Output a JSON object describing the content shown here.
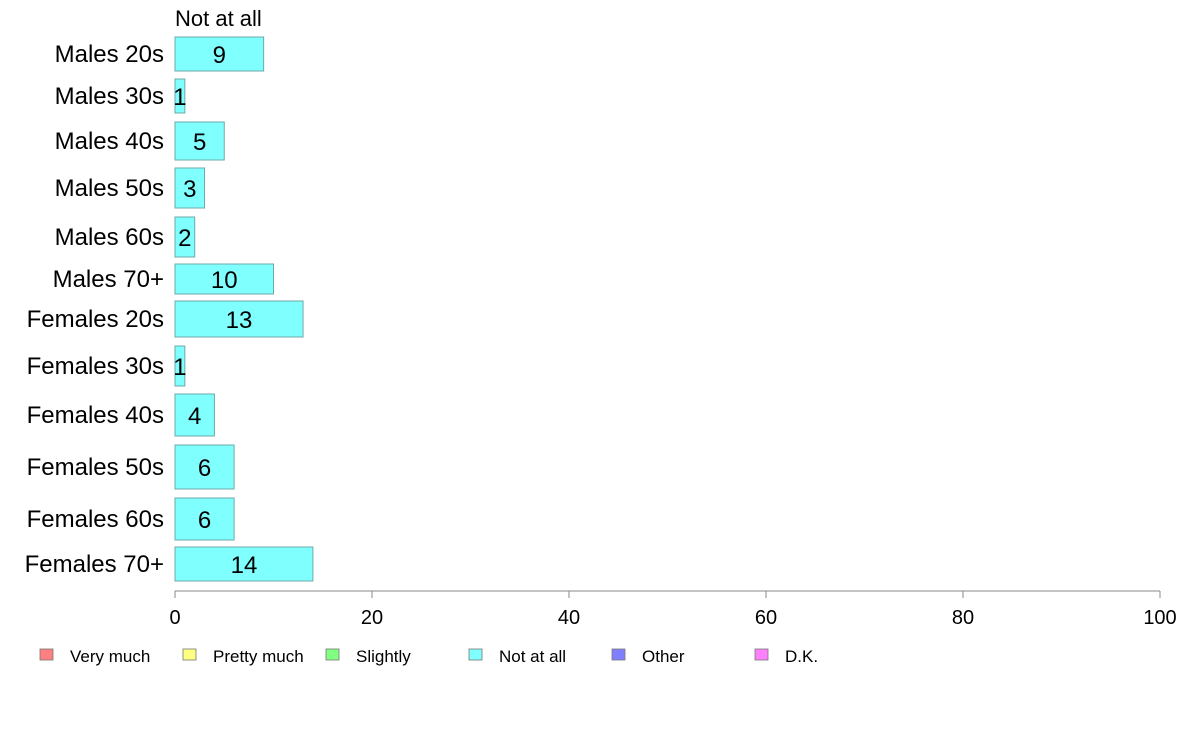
{
  "chart_data": {
    "type": "bar",
    "orientation": "horizontal",
    "stacked": true,
    "categories": [
      "Males 20s",
      "Males 30s",
      "Males 40s",
      "Males 50s",
      "Males 60s",
      "Males 70+",
      "Females 20s",
      "Females 30s",
      "Females 40s",
      "Females 50s",
      "Females 60s",
      "Females 70+"
    ],
    "series": [
      {
        "name": "Not at all",
        "color": "#80ffff",
        "values": [
          9,
          1,
          5,
          3,
          2,
          10,
          13,
          1,
          4,
          6,
          6,
          14
        ]
      }
    ],
    "series_heading": "Not at all",
    "xlim": [
      0,
      100
    ],
    "xticks": [
      0,
      20,
      40,
      60,
      80,
      100
    ],
    "legend": [
      {
        "label": "Very much",
        "color": "#ff8080"
      },
      {
        "label": "Pretty much",
        "color": "#ffff80"
      },
      {
        "label": "Slightly",
        "color": "#80ff80"
      },
      {
        "label": "Not at all",
        "color": "#80ffff"
      },
      {
        "label": "Other",
        "color": "#8080ff"
      },
      {
        "label": "D.K.",
        "color": "#ff80ff"
      }
    ],
    "legend_position": "bottom",
    "grid": false
  }
}
